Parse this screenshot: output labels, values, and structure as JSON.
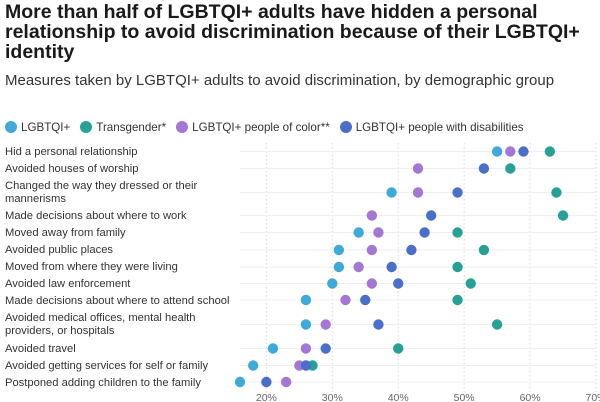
{
  "chart_data": {
    "type": "scatter",
    "title": "More than half of LGBTQI+ adults have hidden a personal relationship to avoid discrimination because of their LGBTQI+ identity",
    "subtitle": "Measures taken by LGBTQI+ adults to avoid discrimination, by demographic group",
    "xlabel": "",
    "ylabel": "",
    "xlim": [
      16,
      70
    ],
    "x_ticks": [
      "20%",
      "30%",
      "40%",
      "50%",
      "60%",
      "70%"
    ],
    "x_tick_values": [
      20,
      30,
      40,
      50,
      60,
      70
    ],
    "grid": true,
    "legend_position": "top-left",
    "categories": [
      "Hid a personal relationship",
      "Avoided houses of worship",
      "Changed the way they dressed or their mannerisms",
      "Made decisions about where to work",
      "Moved away from family",
      "Avoided public places",
      "Moved from where they were living",
      "Avoided law enforcement",
      "Made decisions about where to attend school",
      "Avoided medical offices, mental health providers, or hospitals",
      "Avoided travel",
      "Avoided getting services for self or family",
      "Postponed adding children to the family"
    ],
    "series": [
      {
        "name": "LGBTQI+",
        "color": "#3fa9d9",
        "values": [
          55,
          null,
          39,
          null,
          34,
          31,
          31,
          30,
          26,
          26,
          21,
          18,
          16
        ]
      },
      {
        "name": "Transgender*",
        "color": "#27a195",
        "values": [
          63,
          57,
          64,
          65,
          49,
          53,
          49,
          51,
          49,
          55,
          40,
          27,
          null
        ]
      },
      {
        "name": "LGBTQI+ people of color**",
        "color": "#a577d4",
        "values": [
          57,
          43,
          43,
          36,
          37,
          36,
          34,
          36,
          32,
          29,
          26,
          25,
          23
        ]
      },
      {
        "name": "LGBTQI+ people with disabilities",
        "color": "#4a6fc9",
        "values": [
          59,
          53,
          49,
          45,
          44,
          42,
          39,
          40,
          35,
          37,
          29,
          26,
          20
        ]
      }
    ]
  }
}
